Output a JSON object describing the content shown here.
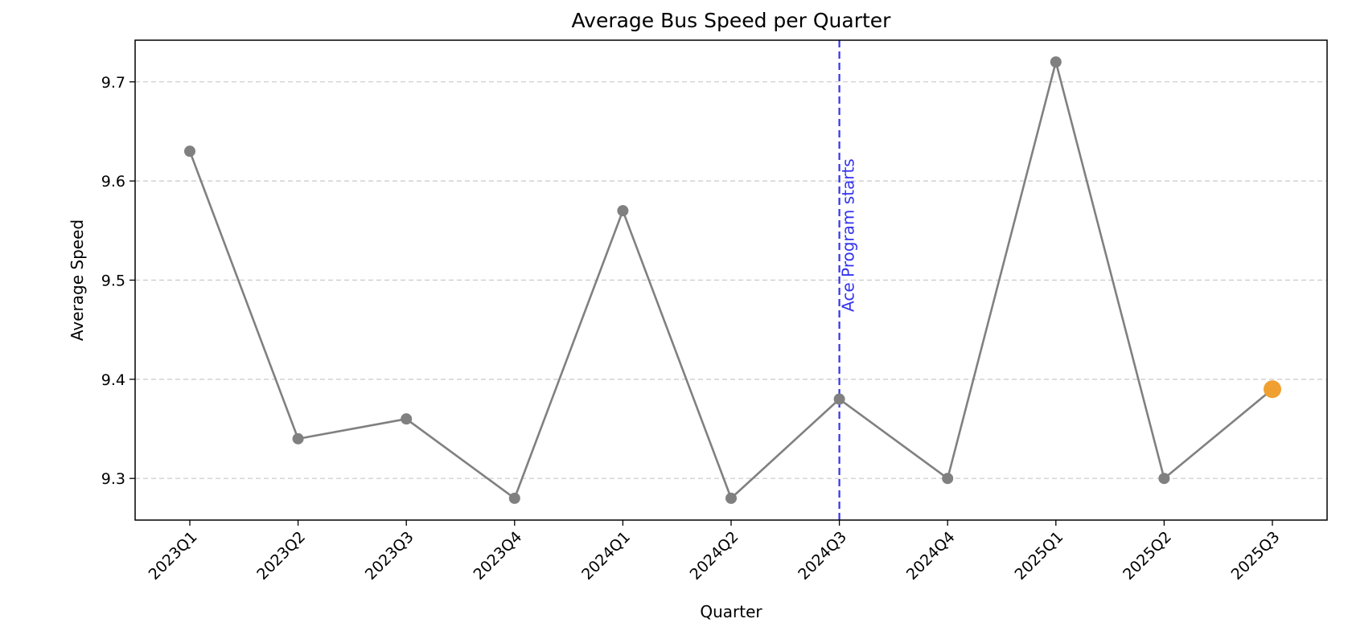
{
  "chart_data": {
    "type": "line",
    "title": "Average Bus Speed per Quarter",
    "xlabel": "Quarter",
    "ylabel": "Average Speed",
    "categories": [
      "2023Q1",
      "2023Q2",
      "2023Q3",
      "2023Q4",
      "2024Q1",
      "2024Q2",
      "2024Q3",
      "2024Q4",
      "2025Q1",
      "2025Q2",
      "2025Q3"
    ],
    "series": [
      {
        "values": [
          9.63,
          9.34,
          9.36,
          9.28,
          9.57,
          9.28,
          9.38,
          9.3,
          9.72,
          9.3,
          9.39
        ],
        "color": "#808080",
        "highlight_last_color": "#f0a030"
      }
    ],
    "ylim": [
      9.258,
      9.742
    ],
    "yticks": [
      9.3,
      9.4,
      9.5,
      9.6,
      9.7
    ],
    "grid": "y-dashed",
    "annotation": {
      "label": "Ace Program starts",
      "at_category": "2024Q3",
      "color": "#3333ee",
      "line_style": "dashed"
    }
  }
}
